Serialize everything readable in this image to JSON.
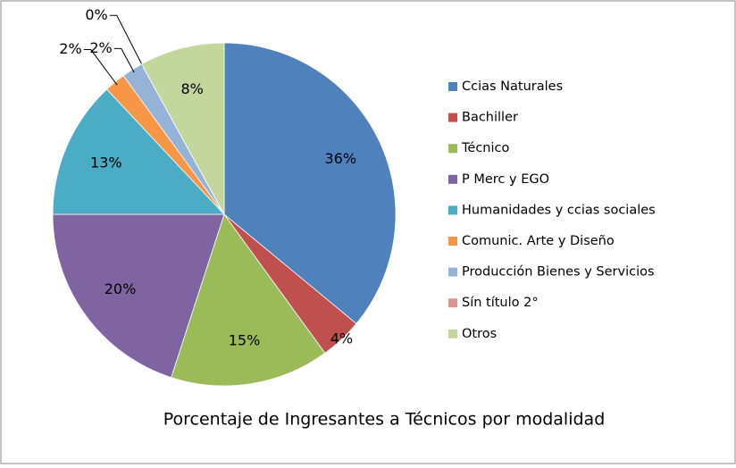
{
  "chart_data": {
    "type": "pie",
    "title": "Porcentaje de Ingresantes a Técnicos por modalidad",
    "categories": [
      "Ccias Naturales",
      "Bachiller",
      "Técnico",
      "P Merc y EGO",
      "Humanidades y ccias sociales",
      "Comunic. Arte y Diseño",
      "Producción Bienes y Servicios",
      "Sín título 2°",
      "Otros"
    ],
    "values": [
      36,
      4,
      15,
      20,
      13,
      2,
      2,
      0,
      8
    ],
    "value_labels": [
      "36%",
      "4%",
      "15%",
      "20%",
      "13%",
      "2%",
      "2%",
      "0%",
      "8%"
    ],
    "colors": [
      "#4f81bd",
      "#c0504d",
      "#9bbb59",
      "#8064a2",
      "#4bacc6",
      "#f79646",
      "#95b3d7",
      "#d99694",
      "#c3d69b"
    ],
    "legend": "right"
  }
}
